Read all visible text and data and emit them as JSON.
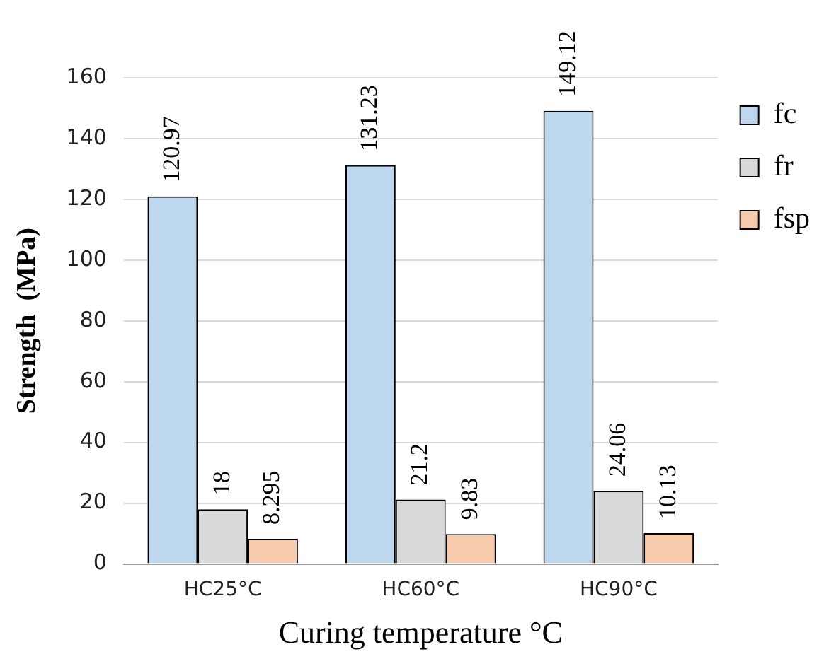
{
  "chart_data": {
    "type": "bar",
    "xlabel": "Curing temperature °C",
    "ylabel": "Strength  (MPa)",
    "categories": [
      "HC25°C",
      "HC60°C",
      "HC90°C"
    ],
    "series": [
      {
        "name": "fc",
        "color": "#bdd7ee",
        "values": [
          120.97,
          131.23,
          149.12
        ]
      },
      {
        "name": "fr",
        "color": "#d9d9d9",
        "values": [
          18,
          21.2,
          24.06
        ]
      },
      {
        "name": "fsp",
        "color": "#f8cbad",
        "values": [
          8.295,
          9.83,
          10.13
        ],
        "value_labels": [
          "8.295",
          "9.83",
          "10.13"
        ]
      }
    ],
    "ylim": [
      0,
      160
    ],
    "yticks": [
      0,
      20,
      40,
      60,
      80,
      100,
      120,
      140,
      160
    ],
    "grid": "y",
    "legend": "top right",
    "data_labels": true
  }
}
